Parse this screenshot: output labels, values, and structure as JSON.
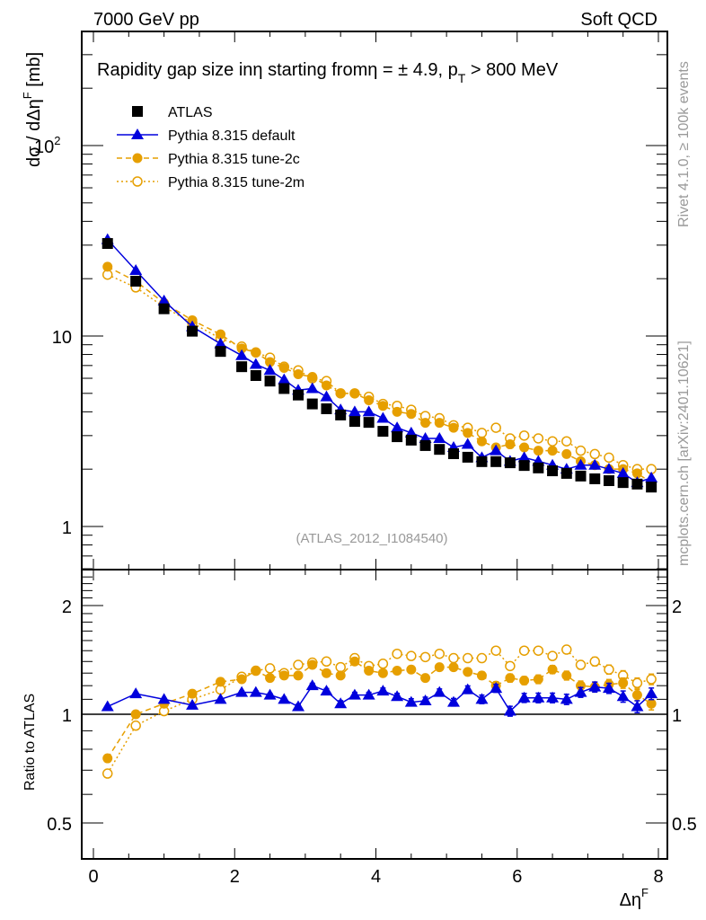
{
  "header": {
    "left": "7000 GeV pp",
    "right": "Soft QCD"
  },
  "side_labels": {
    "rivet": "Rivet 4.1.0, ≥ 100k events",
    "mcplots": "mcplots.cern.ch [arXiv:2401.10621]"
  },
  "colors": {
    "atlas": "#000000",
    "default": "#0000dd",
    "tune2c": "#e69f00",
    "tune2m": "#e69f00",
    "watermark": "#999999"
  },
  "chart_data": [
    {
      "type": "scatter",
      "panel": "main",
      "title": "Rapidity gap size inη starting fromη = ± 4.9, p_T > 800 MeV",
      "title_parts": {
        "main": "Rapidity gap size inη starting fromη = ± 4.9, p",
        "sub": "T",
        "tail": " > 800 MeV"
      },
      "watermark": "(ATLAS_2012_I1084540)",
      "ylabel": "dσ / dΔη^F [mb]",
      "ylabel_parts": {
        "main": "dσ / dΔη",
        "sup": "F",
        "tail": " [mb]"
      },
      "yscale": "log",
      "ylim": [
        0.6,
        400
      ],
      "xlim": [
        -0.05,
        8.2
      ],
      "ytick_labels": [
        {
          "value": 1,
          "label": "1"
        },
        {
          "value": 10,
          "label": "10"
        },
        {
          "value": 100,
          "label": "10",
          "sup": "2"
        }
      ],
      "legend_position": "top-left",
      "x": [
        0.2,
        0.6,
        1.0,
        1.4,
        1.8,
        2.1,
        2.3,
        2.5,
        2.7,
        2.9,
        3.1,
        3.3,
        3.5,
        3.7,
        3.9,
        4.1,
        4.3,
        4.5,
        4.7,
        4.9,
        5.1,
        5.3,
        5.5,
        5.7,
        5.9,
        6.1,
        6.3,
        6.5,
        6.7,
        6.9,
        7.1,
        7.3,
        7.5,
        7.7,
        7.9
      ],
      "series": [
        {
          "name": "ATLAS",
          "style": "square",
          "values": [
            30.6,
            19.4,
            13.9,
            10.6,
            8.3,
            6.9,
            6.2,
            5.8,
            5.3,
            4.9,
            4.4,
            4.15,
            3.85,
            3.56,
            3.52,
            3.16,
            2.96,
            2.84,
            2.66,
            2.54,
            2.41,
            2.31,
            2.19,
            2.19,
            2.16,
            2.09,
            2.03,
            1.96,
            1.9,
            1.84,
            1.78,
            1.74,
            1.7,
            1.67,
            1.61
          ]
        },
        {
          "name": "Pythia 8.315 default",
          "style": "triangle-solid",
          "values": [
            32.1,
            22.1,
            15.3,
            11.2,
            9.1,
            7.9,
            7.1,
            6.6,
            5.9,
            5.2,
            5.3,
            4.8,
            4.1,
            4.0,
            4.0,
            3.7,
            3.3,
            3.1,
            2.9,
            2.9,
            2.6,
            2.7,
            2.3,
            2.5,
            2.2,
            2.3,
            2.2,
            2.1,
            2.0,
            2.1,
            2.1,
            2.0,
            1.9,
            1.7,
            1.8
          ]
        },
        {
          "name": "Pythia 8.315 tune-2c",
          "style": "circle-dashed",
          "values": [
            23.1,
            19.4,
            14.9,
            12.1,
            10.2,
            8.6,
            8.2,
            7.3,
            6.8,
            6.3,
            6.1,
            5.5,
            5.0,
            5.0,
            4.6,
            4.3,
            4.0,
            3.9,
            3.5,
            3.5,
            3.3,
            3.1,
            2.8,
            2.6,
            2.7,
            2.6,
            2.5,
            2.5,
            2.4,
            2.2,
            2.1,
            2.0,
            2.0,
            1.9,
            1.7
          ]
        },
        {
          "name": "Pythia 8.315 tune-2m",
          "style": "circle-open-dotted",
          "values": [
            21.0,
            18.0,
            14.2,
            11.7,
            9.7,
            8.8,
            8.2,
            7.7,
            6.9,
            6.6,
            6.0,
            5.8,
            5.0,
            5.0,
            4.8,
            4.4,
            4.3,
            4.1,
            3.8,
            3.7,
            3.4,
            3.3,
            3.1,
            3.3,
            2.9,
            3.0,
            2.9,
            2.8,
            2.8,
            2.5,
            2.4,
            2.3,
            2.1,
            2.0,
            2.0
          ]
        }
      ]
    },
    {
      "type": "scatter",
      "panel": "ratio",
      "ylabel": "Ratio to ATLAS",
      "xlabel": "Δη^F",
      "xlabel_parts": {
        "main": "Δη",
        "sup": "F"
      },
      "yscale": "log",
      "ylim": [
        0.42,
        2.5
      ],
      "xlim": [
        -0.05,
        8.2
      ],
      "ytick_labels": [
        {
          "value": 0.5,
          "label": "0.5"
        },
        {
          "value": 1,
          "label": "1"
        },
        {
          "value": 2,
          "label": "2"
        }
      ],
      "xtick_labels": [
        {
          "value": 0,
          "label": "0"
        },
        {
          "value": 2,
          "label": "2"
        },
        {
          "value": 4,
          "label": "4"
        },
        {
          "value": 6,
          "label": "6"
        },
        {
          "value": 8,
          "label": "8"
        }
      ],
      "reference_line": 1,
      "x": [
        0.2,
        0.6,
        1.0,
        1.4,
        1.8,
        2.1,
        2.3,
        2.5,
        2.7,
        2.9,
        3.1,
        3.3,
        3.5,
        3.7,
        3.9,
        4.1,
        4.3,
        4.5,
        4.7,
        4.9,
        5.1,
        5.3,
        5.5,
        5.7,
        5.9,
        6.1,
        6.3,
        6.5,
        6.7,
        6.9,
        7.1,
        7.3,
        7.5,
        7.7,
        7.9
      ],
      "series": [
        {
          "name": "Pythia 8.315 default",
          "style": "triangle-solid",
          "values": [
            1.05,
            1.14,
            1.1,
            1.06,
            1.1,
            1.15,
            1.15,
            1.13,
            1.1,
            1.05,
            1.2,
            1.16,
            1.07,
            1.13,
            1.13,
            1.16,
            1.12,
            1.08,
            1.09,
            1.15,
            1.08,
            1.17,
            1.1,
            1.18,
            1.02,
            1.11,
            1.11,
            1.11,
            1.1,
            1.15,
            1.19,
            1.18,
            1.12,
            1.05,
            1.14
          ],
          "errors": [
            0.005,
            0.005,
            0.005,
            0.005,
            0.008,
            0.01,
            0.01,
            0.012,
            0.014,
            0.015,
            0.018,
            0.018,
            0.02,
            0.02,
            0.02,
            0.022,
            0.022,
            0.024,
            0.025,
            0.025,
            0.026,
            0.028,
            0.03,
            0.03,
            0.032,
            0.032,
            0.034,
            0.034,
            0.036,
            0.036,
            0.038,
            0.038,
            0.04,
            0.04,
            0.042
          ]
        },
        {
          "name": "Pythia 8.315 tune-2c",
          "style": "circle-dashed",
          "values": [
            0.755,
            1.0,
            1.07,
            1.14,
            1.23,
            1.25,
            1.32,
            1.26,
            1.28,
            1.28,
            1.37,
            1.3,
            1.28,
            1.4,
            1.32,
            1.3,
            1.32,
            1.33,
            1.26,
            1.35,
            1.35,
            1.31,
            1.28,
            1.2,
            1.26,
            1.24,
            1.25,
            1.33,
            1.28,
            1.2,
            1.19,
            1.21,
            1.22,
            1.13,
            1.07
          ],
          "errors": [
            0.005,
            0.005,
            0.005,
            0.005,
            0.008,
            0.01,
            0.01,
            0.012,
            0.014,
            0.015,
            0.018,
            0.018,
            0.02,
            0.02,
            0.02,
            0.022,
            0.022,
            0.024,
            0.025,
            0.025,
            0.026,
            0.028,
            0.03,
            0.03,
            0.032,
            0.032,
            0.034,
            0.034,
            0.036,
            0.036,
            0.038,
            0.038,
            0.04,
            0.04,
            0.042
          ]
        },
        {
          "name": "Pythia 8.315 tune-2m",
          "style": "circle-open-dotted",
          "values": [
            0.685,
            0.93,
            1.02,
            1.1,
            1.17,
            1.27,
            1.32,
            1.34,
            1.3,
            1.37,
            1.39,
            1.4,
            1.35,
            1.43,
            1.36,
            1.38,
            1.47,
            1.45,
            1.44,
            1.47,
            1.43,
            1.43,
            1.43,
            1.5,
            1.36,
            1.5,
            1.5,
            1.45,
            1.51,
            1.37,
            1.4,
            1.33,
            1.28,
            1.22,
            1.25
          ],
          "errors": [
            0.005,
            0.005,
            0.005,
            0.005,
            0.008,
            0.01,
            0.01,
            0.012,
            0.014,
            0.015,
            0.018,
            0.018,
            0.02,
            0.02,
            0.02,
            0.022,
            0.022,
            0.024,
            0.025,
            0.025,
            0.026,
            0.028,
            0.03,
            0.03,
            0.032,
            0.032,
            0.034,
            0.034,
            0.036,
            0.036,
            0.038,
            0.038,
            0.04,
            0.04,
            0.042
          ]
        }
      ]
    }
  ]
}
